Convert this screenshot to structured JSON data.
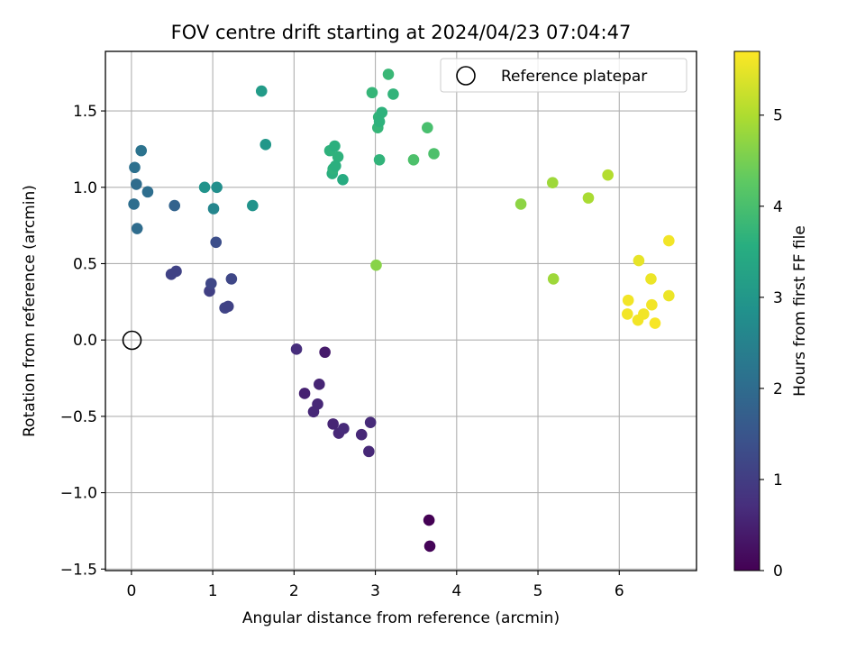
{
  "chart_data": {
    "type": "scatter",
    "title": "FOV centre drift starting at 2024/04/23 07:04:47",
    "xlabel": "Angular distance from reference (arcmin)",
    "ylabel": "Rotation from reference (arcmin)",
    "xlim": [
      -0.32,
      6.95
    ],
    "ylim": [
      -1.51,
      1.89
    ],
    "xticks": [
      0,
      1,
      2,
      3,
      4,
      5,
      6
    ],
    "yticks": [
      -1.5,
      -1.0,
      -0.5,
      0.0,
      0.5,
      1.0,
      1.5
    ],
    "xtick_labels": [
      "0",
      "1",
      "2",
      "3",
      "4",
      "5",
      "6"
    ],
    "ytick_labels": [
      "−1.5",
      "−1.0",
      "−0.5",
      "0.0",
      "0.5",
      "1.0",
      "1.5"
    ],
    "grid": true,
    "legend": {
      "position": "upper-right",
      "entries": [
        "Reference platepar"
      ]
    },
    "reference_point": {
      "x": 0,
      "y": 0,
      "label": "Reference platepar"
    },
    "colorbar": {
      "label": "Hours from first FF file",
      "range": [
        0,
        5.7
      ],
      "ticks": [
        0,
        1,
        2,
        3,
        4,
        5
      ],
      "tick_labels": [
        "0",
        "1",
        "2",
        "3",
        "4",
        "5"
      ],
      "colormap": "viridis"
    },
    "series": [
      {
        "x": [
          3.66,
          3.67,
          2.03,
          2.38,
          2.13,
          2.31,
          2.29,
          2.24,
          2.48,
          2.55,
          2.61,
          2.94,
          2.83,
          2.92,
          0.49,
          0.55,
          0.96,
          0.98,
          1.15,
          1.19,
          1.23,
          1.04,
          0.04,
          0.06,
          0.12,
          0.03,
          0.2,
          0.07,
          0.53,
          0.9,
          1.01,
          1.05,
          1.49,
          1.6,
          1.65,
          2.44,
          2.47,
          2.5,
          2.54,
          2.48,
          2.51,
          2.6,
          2.96,
          3.04,
          3.08,
          3.16,
          3.22,
          3.03,
          3.05,
          3.05,
          3.64,
          3.47,
          3.72,
          3.01,
          4.79,
          5.18,
          5.19,
          5.62,
          5.86,
          6.24,
          6.39,
          6.11,
          6.61,
          6.61,
          6.1,
          6.3,
          6.23,
          6.4,
          6.44
        ],
        "y": [
          -1.18,
          -1.35,
          -0.06,
          -0.08,
          -0.35,
          -0.29,
          -0.42,
          -0.47,
          -0.55,
          -0.61,
          -0.58,
          -0.54,
          -0.62,
          -0.73,
          0.43,
          0.45,
          0.32,
          0.37,
          0.21,
          0.22,
          0.4,
          0.64,
          1.13,
          1.02,
          1.24,
          0.89,
          0.97,
          0.73,
          0.88,
          1.0,
          0.86,
          1.0,
          0.88,
          1.63,
          1.28,
          1.24,
          1.09,
          1.27,
          1.2,
          1.12,
          1.14,
          1.05,
          1.62,
          1.46,
          1.49,
          1.74,
          1.61,
          1.39,
          1.43,
          1.18,
          1.39,
          1.18,
          1.22,
          0.49,
          0.89,
          1.03,
          0.4,
          0.93,
          1.08,
          0.52,
          0.4,
          0.26,
          0.65,
          0.29,
          0.17,
          0.17,
          0.13,
          0.23,
          0.11
        ],
        "hours": [
          0.0,
          0.05,
          0.7,
          0.4,
          0.5,
          0.55,
          0.6,
          0.6,
          0.55,
          0.6,
          0.65,
          0.65,
          0.6,
          0.6,
          1.1,
          1.1,
          1.05,
          1.2,
          1.15,
          1.1,
          1.2,
          1.35,
          2.1,
          2.0,
          2.15,
          2.05,
          2.05,
          2.0,
          1.8,
          2.9,
          2.6,
          2.8,
          2.9,
          3.1,
          3.0,
          3.65,
          3.6,
          3.6,
          3.65,
          3.65,
          3.6,
          3.5,
          3.75,
          3.7,
          3.65,
          3.8,
          3.7,
          3.75,
          3.65,
          3.7,
          4.0,
          4.05,
          4.05,
          4.65,
          4.7,
          4.85,
          4.85,
          4.95,
          5.05,
          5.5,
          5.55,
          5.6,
          5.6,
          5.55,
          5.6,
          5.6,
          5.6,
          5.6,
          5.65
        ]
      }
    ]
  }
}
